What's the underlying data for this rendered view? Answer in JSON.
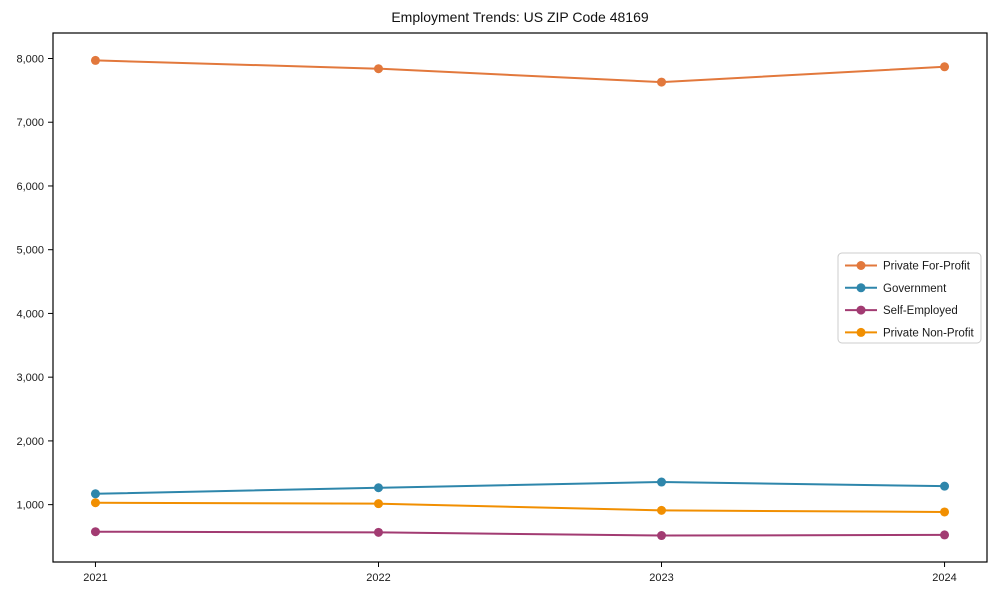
{
  "chart_data": {
    "type": "line",
    "title": "Employment Trends: US ZIP Code 48169",
    "xlabel": "",
    "ylabel": "",
    "x": [
      2021,
      2022,
      2023,
      2024
    ],
    "xtick_labels": [
      "2021",
      "2022",
      "2023",
      "2024"
    ],
    "yticks": [
      {
        "value": 1000,
        "label": "1,000"
      },
      {
        "value": 2000,
        "label": "2,000"
      },
      {
        "value": 3000,
        "label": "3,000"
      },
      {
        "value": 4000,
        "label": "4,000"
      },
      {
        "value": 5000,
        "label": "5,000"
      },
      {
        "value": 6000,
        "label": "6,000"
      },
      {
        "value": 7000,
        "label": "7,000"
      },
      {
        "value": 8000,
        "label": "8,000"
      }
    ],
    "xlim": [
      2020.85,
      2024.15
    ],
    "ylim": [
      100,
      8400
    ],
    "grid": false,
    "legend_position": "center-right",
    "series": [
      {
        "id": "private-for-profit",
        "name": "Private For-Profit",
        "color": "#E2783C",
        "values": [
          7970,
          7840,
          7630,
          7870
        ]
      },
      {
        "id": "government",
        "name": "Government",
        "color": "#2E86AB",
        "values": [
          1170,
          1265,
          1355,
          1290
        ]
      },
      {
        "id": "self-employed",
        "name": "Self-Employed",
        "color": "#A23B72",
        "values": [
          575,
          565,
          515,
          525
        ]
      },
      {
        "id": "private-non-profit",
        "name": "Private Non-Profit",
        "color": "#F18F01",
        "values": [
          1030,
          1015,
          910,
          885
        ]
      }
    ],
    "axis_color": "#000000",
    "tick_label_color": "#1a1a1a",
    "legend_border_color": "#cccccc",
    "legend_bg_color": "#ffffff"
  }
}
